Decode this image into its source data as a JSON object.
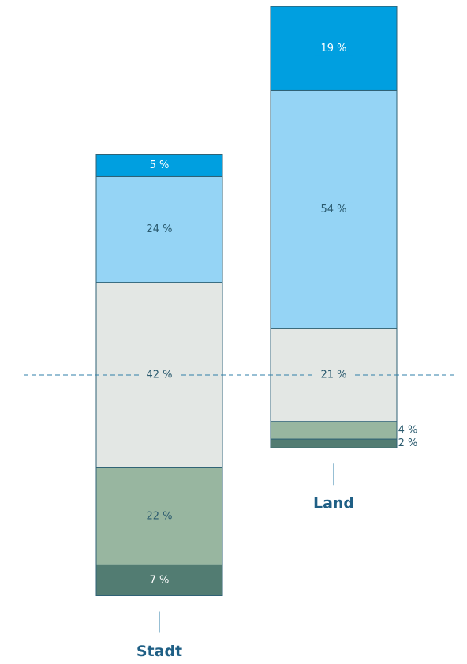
{
  "chart_data": {
    "type": "bar",
    "stacked": true,
    "categories": [
      "Stadt",
      "Land"
    ],
    "series": [
      {
        "color": "#527c72",
        "values": [
          7,
          2
        ],
        "value_labels": [
          "7 %",
          "2 %"
        ]
      },
      {
        "color": "#98b6a0",
        "values": [
          22,
          4
        ],
        "value_labels": [
          "22 %",
          "4 %"
        ]
      },
      {
        "color": "#e3e7e4",
        "values": [
          42,
          21
        ],
        "value_labels": [
          "42 %",
          "21 %"
        ]
      },
      {
        "color": "#95d4f5",
        "values": [
          24,
          54
        ],
        "value_labels": [
          "24 %",
          "54 %"
        ]
      },
      {
        "color": "#009fe0",
        "values": [
          5,
          19
        ],
        "value_labels": [
          "5 %",
          "19 %"
        ]
      }
    ]
  }
}
